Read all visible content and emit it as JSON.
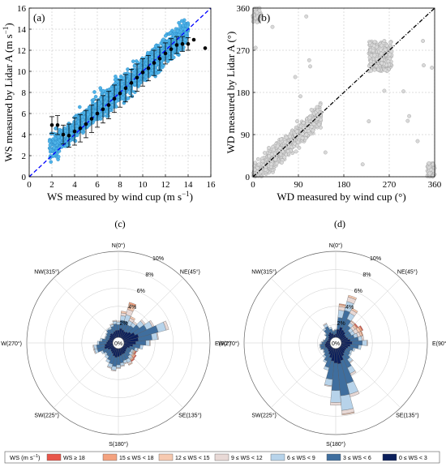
{
  "colors": {
    "ws_points_fill": "#4fb3e8",
    "ws_points_stroke": "#1f7fbf",
    "ref_line": "#0000ff",
    "wd_points": "#d9d9d9",
    "wd_points_stroke": "#9a9a9a",
    "bins": [
      "#0b1f5c",
      "#3f6e9e",
      "#b7d3ea",
      "#e8d9d6",
      "#f6c9b0",
      "#f4a27f",
      "#e8564a"
    ]
  },
  "chart_data": [
    {
      "type": "scatter",
      "label": "(a)",
      "xlabel": "WS measured by wind cup (m s",
      "ylabel": "WS measured by Lidar A (m s",
      "unit_sup": "−1",
      "xlim": [
        0,
        16
      ],
      "ylim": [
        0,
        16
      ],
      "xticks": [
        "0",
        "2",
        "4",
        "6",
        "8",
        "10",
        "12",
        "14",
        "16"
      ],
      "yticks": [
        "0",
        "2",
        "4",
        "6",
        "8",
        "10",
        "12",
        "14",
        "16"
      ],
      "grid": true,
      "reference_line": "y = x",
      "binned_means": {
        "x": [
          2,
          2.5,
          3,
          3.5,
          4,
          4.5,
          5,
          5.5,
          6,
          6.5,
          7,
          7.5,
          8,
          8.5,
          9,
          9.5,
          10,
          10.5,
          11,
          11.5,
          12,
          12.5,
          13,
          13.5,
          14,
          14.5,
          15.5
        ],
        "y": [
          4.9,
          4.9,
          4.0,
          3.9,
          4.3,
          4.6,
          5.0,
          5.5,
          6.0,
          6.4,
          6.8,
          7.4,
          7.9,
          8.4,
          8.9,
          9.4,
          9.9,
          10.3,
          10.8,
          11.2,
          11.7,
          12.1,
          12.5,
          12.6,
          12.6,
          13.0,
          12.2
        ],
        "std": [
          0.8,
          0.9,
          0.9,
          1.1,
          1.3,
          1.3,
          1.3,
          1.3,
          1.3,
          1.3,
          1.3,
          1.3,
          1.3,
          1.3,
          1.3,
          1.3,
          1.3,
          1.2,
          1.2,
          1.1,
          1.0,
          1.0,
          0.8,
          0.7,
          0.6,
          0,
          0
        ]
      }
    },
    {
      "type": "scatter",
      "label": "(b)",
      "xlabel": "WD measured by wind cup (°)",
      "ylabel": "WD measured by Lidar A (°)",
      "xlim": [
        0,
        360
      ],
      "ylim": [
        0,
        360
      ],
      "xticks": [
        "0",
        "90",
        "180",
        "270",
        "360"
      ],
      "yticks": [
        "0",
        "90",
        "180",
        "270",
        "360"
      ],
      "grid": true,
      "reference_line": "y = x"
    },
    {
      "type": "wind_rose",
      "label": "(c)",
      "direction_labels": [
        "N(0°)",
        "NE(45°)",
        "E(90°)",
        "SE(135°)",
        "S(180°)",
        "SW(225°)",
        "W(270°)",
        "NW(315°)"
      ],
      "ring_labels": [
        "0%",
        "2%",
        "4%",
        "6%",
        "8%",
        "10%"
      ],
      "rmax": 10,
      "sectors": [
        {
          "dir": 0,
          "v": [
            1.4,
            0.6,
            0.3,
            0.1,
            0,
            0,
            0
          ]
        },
        {
          "dir": 10,
          "v": [
            1.6,
            0.9,
            0.5,
            0.3,
            0.2,
            0,
            0
          ]
        },
        {
          "dir": 20,
          "v": [
            1.5,
            1.0,
            0.7,
            0.6,
            0.6,
            0.2,
            0
          ]
        },
        {
          "dir": 30,
          "v": [
            1.4,
            0.8,
            0.5,
            0.3,
            0.2,
            0,
            0
          ]
        },
        {
          "dir": 40,
          "v": [
            1.5,
            0.8,
            0.4,
            0.2,
            0,
            0,
            0
          ]
        },
        {
          "dir": 50,
          "v": [
            1.7,
            1.1,
            0.6,
            0.2,
            0,
            0,
            0
          ]
        },
        {
          "dir": 60,
          "v": [
            2.0,
            1.4,
            0.7,
            0.2,
            0,
            0,
            0
          ]
        },
        {
          "dir": 70,
          "v": [
            2.3,
            2.2,
            0.9,
            0.3,
            0,
            0,
            0
          ]
        },
        {
          "dir": 80,
          "v": [
            2.2,
            1.5,
            0.6,
            0.1,
            0,
            0,
            0
          ]
        },
        {
          "dir": 90,
          "v": [
            1.9,
            1.1,
            0.4,
            0.1,
            0,
            0,
            0
          ]
        },
        {
          "dir": 100,
          "v": [
            1.6,
            0.8,
            0.3,
            0,
            0,
            0,
            0
          ]
        },
        {
          "dir": 110,
          "v": [
            1.3,
            0.6,
            0.3,
            0.1,
            0,
            0,
            0
          ]
        },
        {
          "dir": 120,
          "v": [
            1.1,
            0.5,
            0.2,
            0.1,
            0.1,
            0.1,
            0.1
          ]
        },
        {
          "dir": 130,
          "v": [
            1.1,
            0.5,
            0.3,
            0.1,
            0.1,
            0.2,
            0.1
          ]
        },
        {
          "dir": 140,
          "v": [
            1.2,
            0.6,
            0.3,
            0.1,
            0.1,
            0.1,
            0.1
          ]
        },
        {
          "dir": 150,
          "v": [
            1.3,
            0.7,
            0.4,
            0.2,
            0.1,
            0,
            0
          ]
        },
        {
          "dir": 160,
          "v": [
            1.3,
            0.7,
            0.3,
            0.1,
            0,
            0,
            0
          ]
        },
        {
          "dir": 170,
          "v": [
            1.4,
            0.8,
            0.3,
            0.1,
            0,
            0,
            0
          ]
        },
        {
          "dir": 180,
          "v": [
            1.5,
            0.9,
            0.3,
            0.1,
            0,
            0,
            0
          ]
        },
        {
          "dir": 190,
          "v": [
            1.6,
            1.0,
            0.4,
            0.1,
            0,
            0,
            0
          ]
        },
        {
          "dir": 200,
          "v": [
            1.5,
            0.9,
            0.4,
            0.1,
            0,
            0,
            0
          ]
        },
        {
          "dir": 210,
          "v": [
            1.3,
            0.8,
            0.3,
            0,
            0,
            0,
            0
          ]
        },
        {
          "dir": 220,
          "v": [
            1.2,
            0.6,
            0.3,
            0,
            0,
            0,
            0
          ]
        },
        {
          "dir": 230,
          "v": [
            1.1,
            0.6,
            0.2,
            0,
            0,
            0,
            0
          ]
        },
        {
          "dir": 240,
          "v": [
            1.3,
            0.6,
            0.2,
            0,
            0,
            0,
            0
          ]
        },
        {
          "dir": 250,
          "v": [
            1.6,
            0.8,
            0.3,
            0.1,
            0,
            0,
            0
          ]
        },
        {
          "dir": 260,
          "v": [
            1.5,
            0.9,
            0.3,
            0.1,
            0,
            0,
            0
          ]
        },
        {
          "dir": 270,
          "v": [
            1.3,
            0.8,
            0.2,
            0,
            0,
            0,
            0
          ]
        },
        {
          "dir": 280,
          "v": [
            1.2,
            0.6,
            0.2,
            0,
            0,
            0,
            0
          ]
        },
        {
          "dir": 290,
          "v": [
            1.1,
            0.4,
            0.1,
            0,
            0,
            0,
            0
          ]
        },
        {
          "dir": 300,
          "v": [
            1.1,
            0.4,
            0.1,
            0,
            0,
            0,
            0
          ]
        },
        {
          "dir": 310,
          "v": [
            1.2,
            0.4,
            0.1,
            0,
            0,
            0,
            0
          ]
        },
        {
          "dir": 320,
          "v": [
            1.3,
            0.5,
            0.1,
            0,
            0,
            0,
            0
          ]
        },
        {
          "dir": 330,
          "v": [
            1.2,
            0.5,
            0.2,
            0,
            0,
            0,
            0
          ]
        },
        {
          "dir": 340,
          "v": [
            1.3,
            0.6,
            0.2,
            0.1,
            0,
            0,
            0
          ]
        },
        {
          "dir": 350,
          "v": [
            1.4,
            0.7,
            0.3,
            0.1,
            0,
            0,
            0
          ]
        }
      ]
    },
    {
      "type": "wind_rose",
      "label": "(d)",
      "direction_labels": [
        "N(0°)",
        "NE(45°)",
        "E(90°)",
        "SE(135°)",
        "S(180°)",
        "SW(225°)",
        "W(270°)",
        "NW(315°)"
      ],
      "ring_labels": [
        "0%",
        "2%",
        "4%",
        "6%",
        "8%",
        "10%"
      ],
      "rmax": 10,
      "sectors": [
        {
          "dir": 0,
          "v": [
            1.0,
            0.4,
            0.1,
            0,
            0,
            0,
            0
          ]
        },
        {
          "dir": 10,
          "v": [
            1.5,
            1.3,
            0.8,
            0.4,
            0.2,
            0.1,
            0
          ]
        },
        {
          "dir": 20,
          "v": [
            1.8,
            1.9,
            1.0,
            0.5,
            0.2,
            0,
            0
          ]
        },
        {
          "dir": 30,
          "v": [
            1.6,
            1.3,
            0.7,
            0.4,
            0.2,
            0,
            0
          ]
        },
        {
          "dir": 40,
          "v": [
            1.5,
            0.8,
            0.4,
            0.2,
            0.1,
            0,
            0
          ]
        },
        {
          "dir": 50,
          "v": [
            1.3,
            0.6,
            0.4,
            0.3,
            0.2,
            0.1,
            0.1
          ]
        },
        {
          "dir": 60,
          "v": [
            1.3,
            0.6,
            0.4,
            0.4,
            0.3,
            0.2,
            0.1
          ]
        },
        {
          "dir": 70,
          "v": [
            1.4,
            0.7,
            0.4,
            0.3,
            0.2,
            0.1,
            0
          ]
        },
        {
          "dir": 80,
          "v": [
            1.6,
            0.9,
            0.4,
            0.2,
            0,
            0,
            0
          ]
        },
        {
          "dir": 90,
          "v": [
            1.8,
            1.1,
            0.5,
            0.1,
            0,
            0,
            0
          ]
        },
        {
          "dir": 100,
          "v": [
            1.6,
            0.9,
            0.3,
            0,
            0,
            0,
            0
          ]
        },
        {
          "dir": 110,
          "v": [
            1.4,
            0.6,
            0.2,
            0,
            0,
            0,
            0
          ]
        },
        {
          "dir": 120,
          "v": [
            1.3,
            0.5,
            0.2,
            0,
            0,
            0,
            0
          ]
        },
        {
          "dir": 130,
          "v": [
            1.3,
            0.6,
            0.2,
            0,
            0,
            0,
            0
          ]
        },
        {
          "dir": 140,
          "v": [
            1.4,
            0.8,
            0.4,
            0.1,
            0,
            0,
            0
          ]
        },
        {
          "dir": 150,
          "v": [
            1.6,
            1.4,
            0.7,
            0.2,
            0,
            0,
            0
          ]
        },
        {
          "dir": 160,
          "v": [
            2.0,
            2.6,
            1.2,
            0.3,
            0,
            0,
            0
          ]
        },
        {
          "dir": 170,
          "v": [
            2.3,
            3.5,
            1.6,
            0.4,
            0.1,
            0,
            0
          ]
        },
        {
          "dir": 180,
          "v": [
            2.2,
            3.0,
            1.3,
            0.3,
            0,
            0,
            0
          ]
        },
        {
          "dir": 190,
          "v": [
            2.0,
            2.0,
            0.7,
            0.1,
            0,
            0,
            0
          ]
        },
        {
          "dir": 200,
          "v": [
            1.7,
            1.1,
            0.3,
            0,
            0,
            0,
            0
          ]
        },
        {
          "dir": 210,
          "v": [
            1.4,
            0.8,
            0.2,
            0,
            0,
            0,
            0
          ]
        },
        {
          "dir": 220,
          "v": [
            1.2,
            0.6,
            0.2,
            0,
            0,
            0,
            0
          ]
        },
        {
          "dir": 230,
          "v": [
            1.1,
            0.5,
            0.1,
            0,
            0,
            0,
            0
          ]
        },
        {
          "dir": 240,
          "v": [
            1.1,
            0.4,
            0.1,
            0,
            0,
            0,
            0
          ]
        },
        {
          "dir": 250,
          "v": [
            1.2,
            0.5,
            0.1,
            0,
            0,
            0,
            0
          ]
        },
        {
          "dir": 260,
          "v": [
            1.2,
            0.5,
            0.1,
            0,
            0,
            0,
            0
          ]
        },
        {
          "dir": 270,
          "v": [
            1.1,
            0.4,
            0.1,
            0,
            0,
            0,
            0
          ]
        },
        {
          "dir": 280,
          "v": [
            1.0,
            0.3,
            0.1,
            0,
            0,
            0,
            0
          ]
        },
        {
          "dir": 290,
          "v": [
            0.9,
            0.3,
            0,
            0,
            0,
            0,
            0
          ]
        },
        {
          "dir": 300,
          "v": [
            0.9,
            0.3,
            0,
            0,
            0,
            0,
            0
          ]
        },
        {
          "dir": 310,
          "v": [
            1.0,
            0.4,
            0.1,
            0,
            0,
            0,
            0
          ]
        },
        {
          "dir": 320,
          "v": [
            1.2,
            0.6,
            0.2,
            0,
            0,
            0,
            0
          ]
        },
        {
          "dir": 330,
          "v": [
            1.3,
            0.7,
            0.3,
            0.1,
            0,
            0,
            0
          ]
        },
        {
          "dir": 340,
          "v": [
            1.1,
            0.5,
            0.2,
            0,
            0,
            0,
            0
          ]
        },
        {
          "dir": 350,
          "v": [
            0.9,
            0.4,
            0.1,
            0,
            0,
            0,
            0
          ]
        }
      ]
    }
  ],
  "legend": {
    "title": "WS (m s",
    "title_sup": "−1",
    "title_close": ")",
    "items": [
      {
        "label": "WS ≥ 18",
        "color": "#e8564a"
      },
      {
        "label": "15 ≤ WS < 18",
        "color": "#f4a27f"
      },
      {
        "label": "12 ≤ WS < 15",
        "color": "#f6c9b0"
      },
      {
        "label": "9 ≤ WS < 12",
        "color": "#e8d9d6"
      },
      {
        "label": "6 ≤ WS < 9",
        "color": "#b7d3ea"
      },
      {
        "label": "3 ≤ WS < 6",
        "color": "#3f6e9e"
      },
      {
        "label": "0 ≤ WS < 3",
        "color": "#0b1f5c"
      }
    ]
  }
}
